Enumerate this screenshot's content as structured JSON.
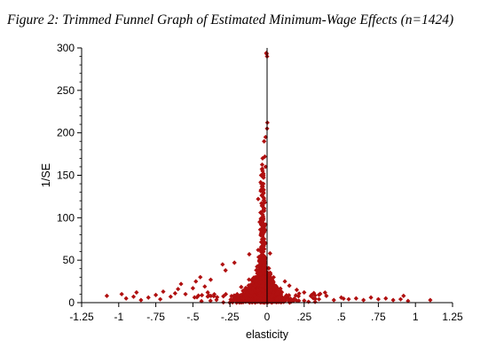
{
  "chart_data": {
    "type": "scatter",
    "title": "Figure 2: Trimmed Funnel Graph of Estimated Minimum-Wage Effects (n=1424)",
    "xlabel": "elasticity",
    "ylabel": "1/SE",
    "xlim": [
      -1.25,
      1.25
    ],
    "ylim": [
      0,
      300
    ],
    "x_ticks": [
      -1.25,
      -1,
      -0.75,
      -0.5,
      -0.25,
      0,
      0.25,
      0.5,
      0.75,
      1,
      1.25
    ],
    "x_tick_labels": [
      "-1.25",
      "-1",
      "-.75",
      "-.5",
      "-.25",
      "0",
      ".25",
      ".5",
      ".75",
      "1",
      "1.25"
    ],
    "y_ticks": [
      0,
      50,
      100,
      150,
      200,
      250,
      300
    ],
    "y_tick_labels": [
      "0",
      "50",
      "100",
      "150",
      "200",
      "250",
      "300"
    ],
    "grid": false,
    "marker_color": "#b01010",
    "marker": "diamond",
    "n": 1424,
    "reference_line_x": 0,
    "points": [
      {
        "x": -0.005,
        "y": 294
      },
      {
        "x": 0.0,
        "y": 290
      },
      {
        "x": -0.003,
        "y": 293
      },
      {
        "x": 0.002,
        "y": 212
      },
      {
        "x": 0.0,
        "y": 205
      },
      {
        "x": -0.01,
        "y": 195
      },
      {
        "x": -0.02,
        "y": 190
      },
      {
        "x": -0.03,
        "y": 170
      },
      {
        "x": -0.015,
        "y": 172
      },
      {
        "x": -0.03,
        "y": 155
      },
      {
        "x": -0.04,
        "y": 150
      },
      {
        "x": -0.01,
        "y": 160
      },
      {
        "x": -0.025,
        "y": 140
      },
      {
        "x": -0.03,
        "y": 125
      },
      {
        "x": -0.015,
        "y": 118
      },
      {
        "x": -0.06,
        "y": 122
      },
      {
        "x": -0.05,
        "y": 95
      },
      {
        "x": -0.02,
        "y": 108
      },
      {
        "x": -0.04,
        "y": 98
      },
      {
        "x": -0.01,
        "y": 92
      },
      {
        "x": -0.015,
        "y": 85
      },
      {
        "x": -0.03,
        "y": 80
      },
      {
        "x": -0.02,
        "y": 75
      },
      {
        "x": -0.01,
        "y": 70
      },
      {
        "x": -0.04,
        "y": 65
      },
      {
        "x": -0.06,
        "y": 62
      },
      {
        "x": -0.025,
        "y": 60
      },
      {
        "x": -0.12,
        "y": 57
      },
      {
        "x": 0.02,
        "y": 58
      },
      {
        "x": -0.28,
        "y": 38
      },
      {
        "x": -0.3,
        "y": 45
      },
      {
        "x": -0.22,
        "y": 47
      },
      {
        "x": -1.08,
        "y": 8
      },
      {
        "x": -0.95,
        "y": 5
      },
      {
        "x": -0.98,
        "y": 10
      },
      {
        "x": -0.9,
        "y": 7
      },
      {
        "x": -0.85,
        "y": 3
      },
      {
        "x": -0.88,
        "y": 12
      },
      {
        "x": -0.8,
        "y": 6
      },
      {
        "x": -0.75,
        "y": 9
      },
      {
        "x": -0.72,
        "y": 4
      },
      {
        "x": -0.7,
        "y": 13
      },
      {
        "x": -0.65,
        "y": 7
      },
      {
        "x": -0.62,
        "y": 11
      },
      {
        "x": -0.6,
        "y": 16
      },
      {
        "x": -0.58,
        "y": 22
      },
      {
        "x": -0.55,
        "y": 10
      },
      {
        "x": -0.5,
        "y": 17
      },
      {
        "x": -0.48,
        "y": 25
      },
      {
        "x": -0.45,
        "y": 30
      },
      {
        "x": -0.42,
        "y": 19
      },
      {
        "x": -0.4,
        "y": 12
      },
      {
        "x": -0.38,
        "y": 27
      },
      {
        "x": 0.3,
        "y": 9
      },
      {
        "x": 0.35,
        "y": 4
      },
      {
        "x": 0.4,
        "y": 8
      },
      {
        "x": 0.45,
        "y": 3
      },
      {
        "x": 0.5,
        "y": 6
      },
      {
        "x": 0.55,
        "y": 4
      },
      {
        "x": 0.6,
        "y": 5
      },
      {
        "x": 0.65,
        "y": 3
      },
      {
        "x": 0.7,
        "y": 6
      },
      {
        "x": 0.75,
        "y": 4
      },
      {
        "x": 0.8,
        "y": 5
      },
      {
        "x": 0.85,
        "y": 3
      },
      {
        "x": 0.9,
        "y": 4
      },
      {
        "x": 0.95,
        "y": 2
      },
      {
        "x": 1.1,
        "y": 3
      },
      {
        "x": 0.92,
        "y": 8
      },
      {
        "x": 0.25,
        "y": 12
      },
      {
        "x": 0.2,
        "y": 15
      },
      {
        "x": 0.15,
        "y": 20
      },
      {
        "x": 0.12,
        "y": 25
      }
    ]
  }
}
